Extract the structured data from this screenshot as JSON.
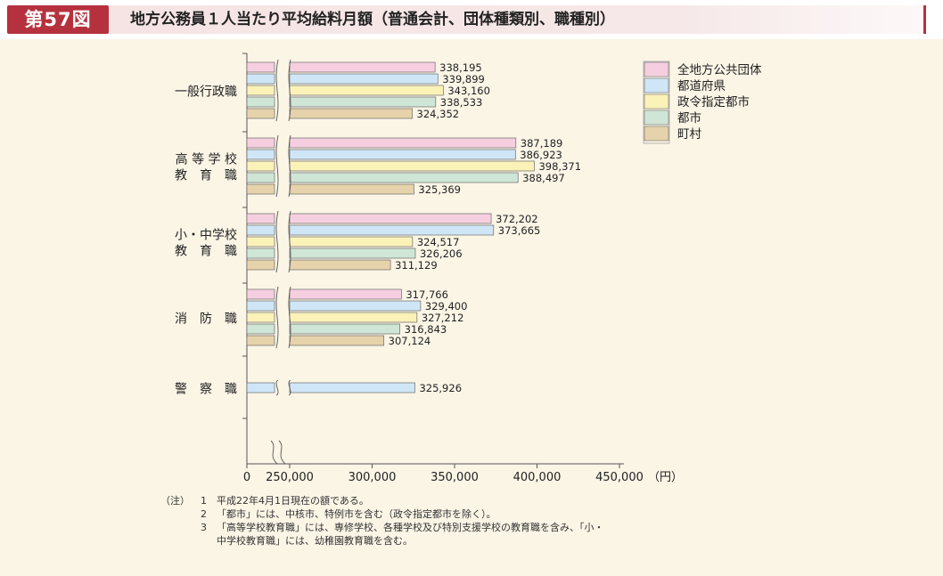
{
  "figure": {
    "number_label": "第57図",
    "title": "地方公務員１人当たり平均給料月額（普通会計、団体種類別、職種別）"
  },
  "chart_data": {
    "type": "bar",
    "orientation": "horizontal",
    "axis_break": "between 0 and 250,000",
    "categories": [
      {
        "lines": [
          "一般行政職"
        ]
      },
      {
        "lines": [
          "高 等 学 校",
          "教　育　職"
        ]
      },
      {
        "lines": [
          "小・中学校",
          "教　育　職"
        ]
      },
      {
        "lines": [
          "消　防　職"
        ]
      },
      {
        "lines": [
          "警　察　職"
        ]
      }
    ],
    "series": [
      {
        "name": "全地方公共団体",
        "color": "#f5cfe0",
        "values": [
          338195,
          387189,
          372202,
          317766,
          null
        ],
        "labels": [
          "338,195",
          "387,189",
          "372,202",
          "317,766",
          ""
        ]
      },
      {
        "name": "都道府県",
        "color": "#cfe6f7",
        "values": [
          339899,
          386923,
          373665,
          329400,
          325926
        ],
        "labels": [
          "339,899",
          "386,923",
          "373,665",
          "329,400",
          "325,926"
        ]
      },
      {
        "name": "政令指定都市",
        "color": "#fbf2b8",
        "values": [
          343160,
          398371,
          324517,
          327212,
          null
        ],
        "labels": [
          "343,160",
          "398,371",
          "324,517",
          "327,212",
          ""
        ]
      },
      {
        "name": "都市",
        "color": "#cfe6d6",
        "values": [
          338533,
          388497,
          326206,
          316843,
          null
        ],
        "labels": [
          "338,533",
          "388,497",
          "326,206",
          "316,843",
          ""
        ]
      },
      {
        "name": "町村",
        "color": "#e6d3ab",
        "values": [
          324352,
          325369,
          311129,
          307124,
          null
        ],
        "labels": [
          "324,352",
          "325,369",
          "311,129",
          "307,124",
          ""
        ]
      }
    ],
    "x_ticks": [
      {
        "value": 0,
        "label": "0"
      },
      {
        "value": 250000,
        "label": "250,000"
      },
      {
        "value": 300000,
        "label": "300,000"
      },
      {
        "value": 350000,
        "label": "350,000"
      },
      {
        "value": 400000,
        "label": "400,000"
      },
      {
        "value": 450000,
        "label": "450,000"
      }
    ],
    "x_unit": "（円）",
    "xlim": [
      250000,
      450000
    ],
    "legend_position": "top-right"
  },
  "notes": {
    "head": "（注）",
    "items": [
      {
        "num": "1",
        "text": "平成22年4月1日現在の額である。"
      },
      {
        "num": "2",
        "text": "「都市」には、中核市、特例市を含む（政令指定都市を除く）。"
      },
      {
        "num": "3",
        "text": "「高等学校教育職」には、専修学校、各種学校及び特別支援学校の教育職を含み、「小・",
        "cont": "中学校教育職」には、幼稚園教育職を含む。"
      }
    ]
  }
}
